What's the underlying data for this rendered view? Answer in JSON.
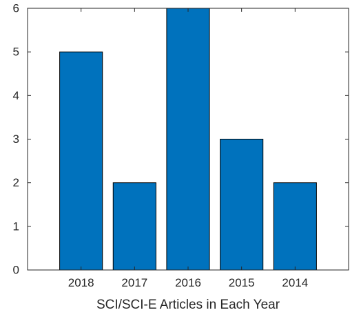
{
  "chart_data": {
    "type": "bar",
    "categories": [
      "2018",
      "2017",
      "2016",
      "2015",
      "2014"
    ],
    "values": [
      5,
      2,
      6,
      3,
      2
    ],
    "title": "",
    "xlabel": "SCI/SCI-E Articles in Each Year",
    "ylabel": "",
    "ylim": [
      0,
      6
    ],
    "yticks": [
      0,
      1,
      2,
      3,
      4,
      5,
      6
    ],
    "grid": false,
    "legend": "none",
    "bar_color": "#0072BD",
    "bar_edge_color": "#000000",
    "axis_color": "#262626"
  }
}
